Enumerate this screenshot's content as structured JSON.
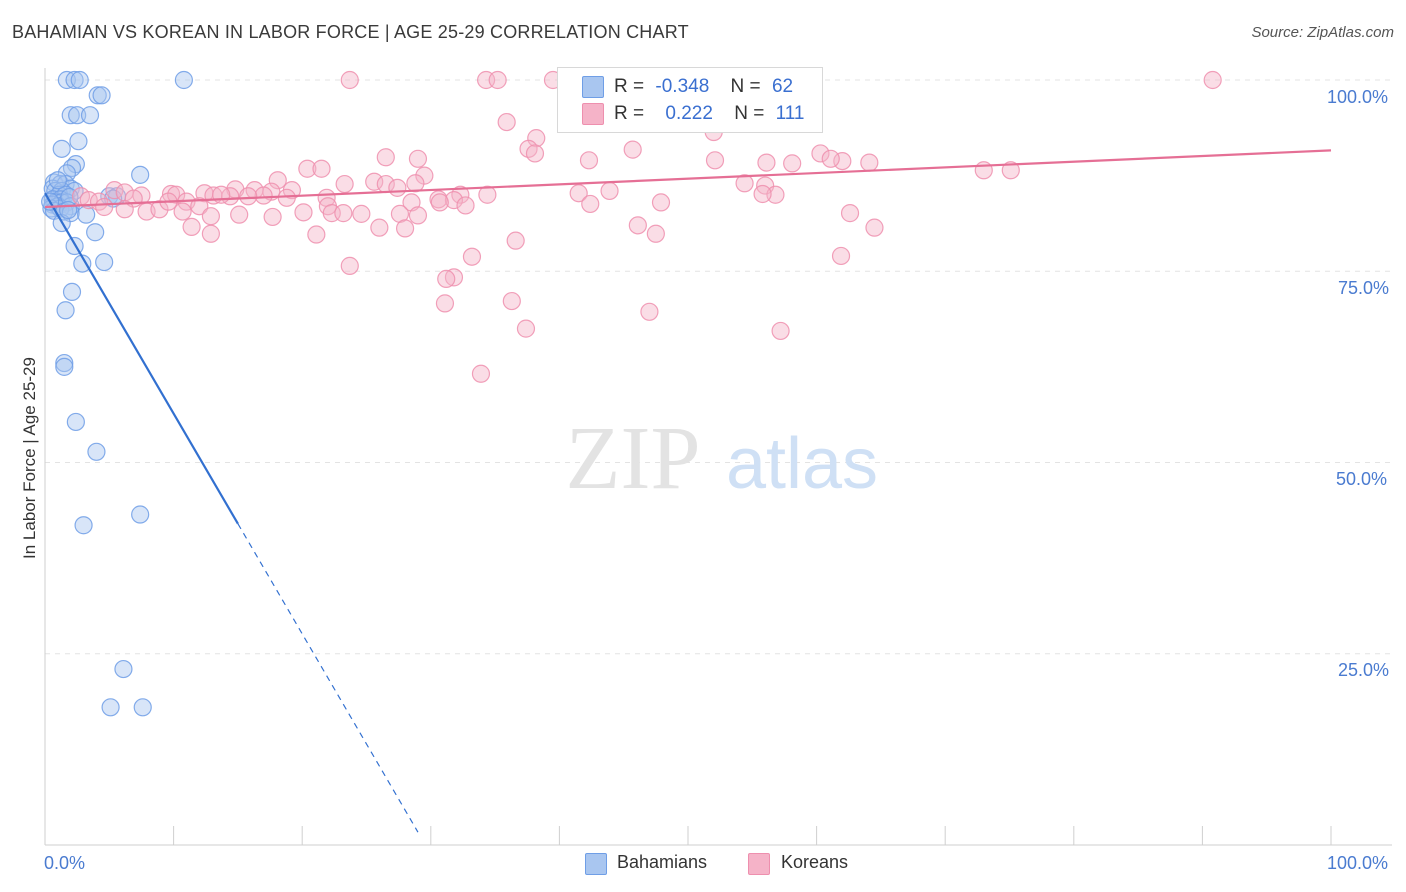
{
  "header": {
    "title": "BAHAMIAN VS KOREAN IN LABOR FORCE | AGE 25-29 CORRELATION CHART",
    "source": "Source: ZipAtlas.com"
  },
  "watermark": {
    "part1": "ZIP",
    "part2": "atlas"
  },
  "legend": {
    "rows": [
      {
        "r_label": "R =",
        "r_value": "-0.348",
        "n_label": "N =",
        "n_value": "62",
        "color": "#a9c6f0"
      },
      {
        "r_label": "R =",
        "r_value": "0.222",
        "n_label": "N =",
        "n_value": "111",
        "color": "#f5b3c8"
      }
    ]
  },
  "bottom_legend": {
    "items": [
      "Bahamians",
      "Koreans"
    ]
  },
  "chart_data": {
    "type": "scatter",
    "title": "BAHAMIAN VS KOREAN IN LABOR FORCE | AGE 25-29 CORRELATION CHART",
    "xlabel": "",
    "ylabel": "In Labor Force | Age 25-29",
    "xlim": [
      0,
      100
    ],
    "ylim": [
      0,
      100
    ],
    "x_tick_labels": [
      "0.0%",
      "100.0%"
    ],
    "y_tick_labels": [
      "100.0%",
      "75.0%",
      "50.0%",
      "25.0%"
    ],
    "y_ticks": [
      100,
      75,
      50,
      25
    ],
    "series": [
      {
        "name": "Bahamians",
        "color": "#6f9ee6",
        "fill": "#a9c6f0",
        "line_color": "#3270d0",
        "trend": {
          "x0": 0,
          "y0": 85.2,
          "x1": 15,
          "y1": 42.0,
          "dash_to_x": 29
        },
        "points": [
          [
            1.7,
            100
          ],
          [
            2.3,
            100
          ],
          [
            2.7,
            100
          ],
          [
            10.8,
            100
          ],
          [
            4.1,
            98
          ],
          [
            4.4,
            98
          ],
          [
            2.0,
            95.4
          ],
          [
            2.5,
            95.4
          ],
          [
            3.5,
            95.4
          ],
          [
            2.6,
            92
          ],
          [
            1.3,
            91
          ],
          [
            2.4,
            89
          ],
          [
            2.1,
            88.5
          ],
          [
            1.7,
            87.8
          ],
          [
            7.4,
            87.6
          ],
          [
            0.7,
            86.6
          ],
          [
            1.2,
            86.4
          ],
          [
            1.6,
            86.4
          ],
          [
            0.6,
            85.8
          ],
          [
            2.0,
            85.8
          ],
          [
            0.8,
            85.5
          ],
          [
            1.3,
            85.5
          ],
          [
            2.3,
            85.5
          ],
          [
            1.1,
            85.0
          ],
          [
            1.6,
            85.0
          ],
          [
            5.0,
            84.8
          ],
          [
            5.6,
            84.8
          ],
          [
            0.6,
            84.4
          ],
          [
            1.2,
            84.4
          ],
          [
            0.8,
            84.0
          ],
          [
            1.3,
            84.0
          ],
          [
            1.7,
            84.0
          ],
          [
            0.6,
            83.7
          ],
          [
            1.0,
            83.5
          ],
          [
            2.0,
            83.5
          ],
          [
            0.5,
            83.2
          ],
          [
            1.2,
            83.2
          ],
          [
            0.7,
            82.9
          ],
          [
            1.5,
            82.8
          ],
          [
            2.0,
            82.6
          ],
          [
            3.2,
            82.4
          ],
          [
            1.3,
            81.3
          ],
          [
            3.9,
            80.1
          ],
          [
            2.3,
            78.3
          ],
          [
            4.6,
            76.2
          ],
          [
            2.9,
            76.0
          ],
          [
            2.1,
            72.3
          ],
          [
            1.6,
            69.9
          ],
          [
            1.5,
            63.0
          ],
          [
            1.5,
            62.5
          ],
          [
            2.4,
            55.3
          ],
          [
            4.0,
            51.4
          ],
          [
            7.4,
            43.2
          ],
          [
            3.0,
            41.8
          ],
          [
            6.1,
            23.0
          ],
          [
            5.1,
            18.0
          ],
          [
            7.6,
            18.0
          ],
          [
            1.9,
            84.7
          ],
          [
            0.4,
            84.1
          ],
          [
            1.0,
            86.9
          ],
          [
            5.3,
            84.5
          ],
          [
            1.8,
            83.0
          ]
        ]
      },
      {
        "name": "Koreans",
        "color": "#ee8fae",
        "fill": "#f5b3c8",
        "line_color": "#e56f95",
        "trend": {
          "x0": 0,
          "y0": 83.4,
          "x1": 100,
          "y1": 90.8
        },
        "points": [
          [
            23.7,
            100
          ],
          [
            34.3,
            100
          ],
          [
            35.2,
            100
          ],
          [
            39.5,
            100
          ],
          [
            49.8,
            100
          ],
          [
            90.8,
            100
          ],
          [
            51.5,
            98.0
          ],
          [
            35.9,
            94.5
          ],
          [
            50.3,
            96.2
          ],
          [
            52.9,
            96.0
          ],
          [
            52.0,
            93.2
          ],
          [
            38.2,
            92.4
          ],
          [
            37.6,
            91.0
          ],
          [
            38.1,
            90.4
          ],
          [
            45.7,
            90.9
          ],
          [
            60.3,
            90.4
          ],
          [
            26.5,
            89.9
          ],
          [
            29.0,
            89.7
          ],
          [
            42.3,
            89.5
          ],
          [
            52.1,
            89.5
          ],
          [
            56.1,
            89.2
          ],
          [
            58.1,
            89.1
          ],
          [
            62.0,
            89.4
          ],
          [
            64.1,
            89.2
          ],
          [
            61.1,
            89.7
          ],
          [
            20.4,
            88.4
          ],
          [
            21.5,
            88.4
          ],
          [
            73.0,
            88.2
          ],
          [
            75.1,
            88.2
          ],
          [
            29.5,
            87.5
          ],
          [
            23.3,
            86.4
          ],
          [
            25.6,
            86.7
          ],
          [
            18.1,
            86.9
          ],
          [
            28.8,
            86.5
          ],
          [
            54.4,
            86.5
          ],
          [
            56.0,
            86.2
          ],
          [
            5.4,
            85.6
          ],
          [
            6.2,
            85.3
          ],
          [
            14.8,
            85.7
          ],
          [
            16.3,
            85.6
          ],
          [
            17.6,
            85.4
          ],
          [
            19.2,
            85.6
          ],
          [
            26.5,
            86.4
          ],
          [
            27.4,
            85.9
          ],
          [
            7.5,
            84.9
          ],
          [
            9.8,
            85.1
          ],
          [
            10.2,
            85.0
          ],
          [
            12.4,
            85.2
          ],
          [
            13.1,
            84.9
          ],
          [
            14.4,
            84.8
          ],
          [
            17.0,
            84.9
          ],
          [
            18.8,
            84.6
          ],
          [
            21.9,
            84.6
          ],
          [
            32.3,
            85.0
          ],
          [
            34.4,
            85.0
          ],
          [
            41.5,
            85.2
          ],
          [
            56.8,
            85.0
          ],
          [
            2.8,
            84.8
          ],
          [
            3.4,
            84.3
          ],
          [
            4.2,
            84.1
          ],
          [
            6.9,
            84.5
          ],
          [
            11.0,
            84.1
          ],
          [
            12.0,
            83.5
          ],
          [
            15.8,
            84.8
          ],
          [
            22.0,
            83.5
          ],
          [
            28.5,
            84.0
          ],
          [
            30.6,
            84.4
          ],
          [
            31.8,
            84.3
          ],
          [
            32.7,
            83.6
          ],
          [
            42.4,
            83.8
          ],
          [
            47.9,
            84.0
          ],
          [
            4.6,
            83.4
          ],
          [
            6.2,
            83.1
          ],
          [
            7.9,
            82.8
          ],
          [
            8.9,
            83.1
          ],
          [
            10.7,
            82.8
          ],
          [
            12.9,
            82.2
          ],
          [
            15.1,
            82.4
          ],
          [
            17.7,
            82.1
          ],
          [
            20.1,
            82.7
          ],
          [
            22.3,
            82.6
          ],
          [
            23.2,
            82.6
          ],
          [
            24.6,
            82.5
          ],
          [
            27.6,
            82.5
          ],
          [
            29.0,
            82.3
          ],
          [
            62.6,
            82.6
          ],
          [
            11.4,
            80.8
          ],
          [
            12.9,
            79.9
          ],
          [
            21.1,
            79.8
          ],
          [
            26.0,
            80.7
          ],
          [
            28.0,
            80.6
          ],
          [
            46.1,
            81.0
          ],
          [
            47.5,
            79.9
          ],
          [
            64.5,
            80.7
          ],
          [
            36.6,
            79.0
          ],
          [
            33.2,
            76.9
          ],
          [
            23.7,
            75.7
          ],
          [
            61.9,
            77.0
          ],
          [
            31.8,
            74.2
          ],
          [
            31.2,
            74.0
          ],
          [
            36.3,
            71.1
          ],
          [
            31.1,
            70.8
          ],
          [
            47.0,
            69.7
          ],
          [
            37.4,
            67.5
          ],
          [
            57.2,
            67.2
          ],
          [
            33.9,
            61.6
          ],
          [
            9.6,
            84.1
          ],
          [
            13.7,
            85.0
          ],
          [
            30.7,
            84.0
          ],
          [
            55.8,
            85.1
          ],
          [
            43.9,
            85.5
          ]
        ]
      }
    ]
  }
}
